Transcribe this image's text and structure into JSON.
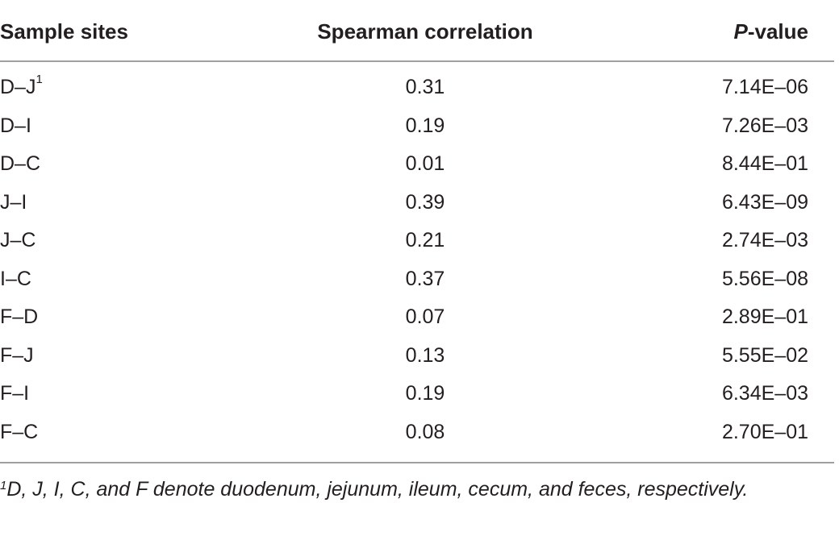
{
  "table": {
    "header": [
      "Sample sites",
      "Spearman correlation",
      [
        "P",
        "-value"
      ]
    ],
    "rows": [
      {
        "site": "D–J",
        "note": "1",
        "rho": "0.31",
        "p": "7.14E–06"
      },
      {
        "site": "D–I",
        "rho": "0.19",
        "p": "7.26E–03"
      },
      {
        "site": "D–C",
        "rho": "0.01",
        "p": "8.44E–01"
      },
      {
        "site": "J–I",
        "rho": "0.39",
        "p": "6.43E–09"
      },
      {
        "site": "J–C",
        "rho": "0.21",
        "p": "2.74E–03"
      },
      {
        "site": "I–C",
        "rho": "0.37",
        "p": "5.56E–08"
      },
      {
        "site": "F–D",
        "rho": "0.07",
        "p": "2.89E–01"
      },
      {
        "site": "F–J",
        "rho": "0.13",
        "p": "5.55E–02"
      },
      {
        "site": "F–I",
        "rho": "0.19",
        "p": "6.34E–03"
      },
      {
        "site": "F–C",
        "rho": "0.08",
        "p": "2.70E–01"
      }
    ],
    "footnote": {
      "mark": "1",
      "text": "D, J, I, C, and F denote duodenum, jejunum, ileum, cecum, and feces, respectively."
    }
  }
}
